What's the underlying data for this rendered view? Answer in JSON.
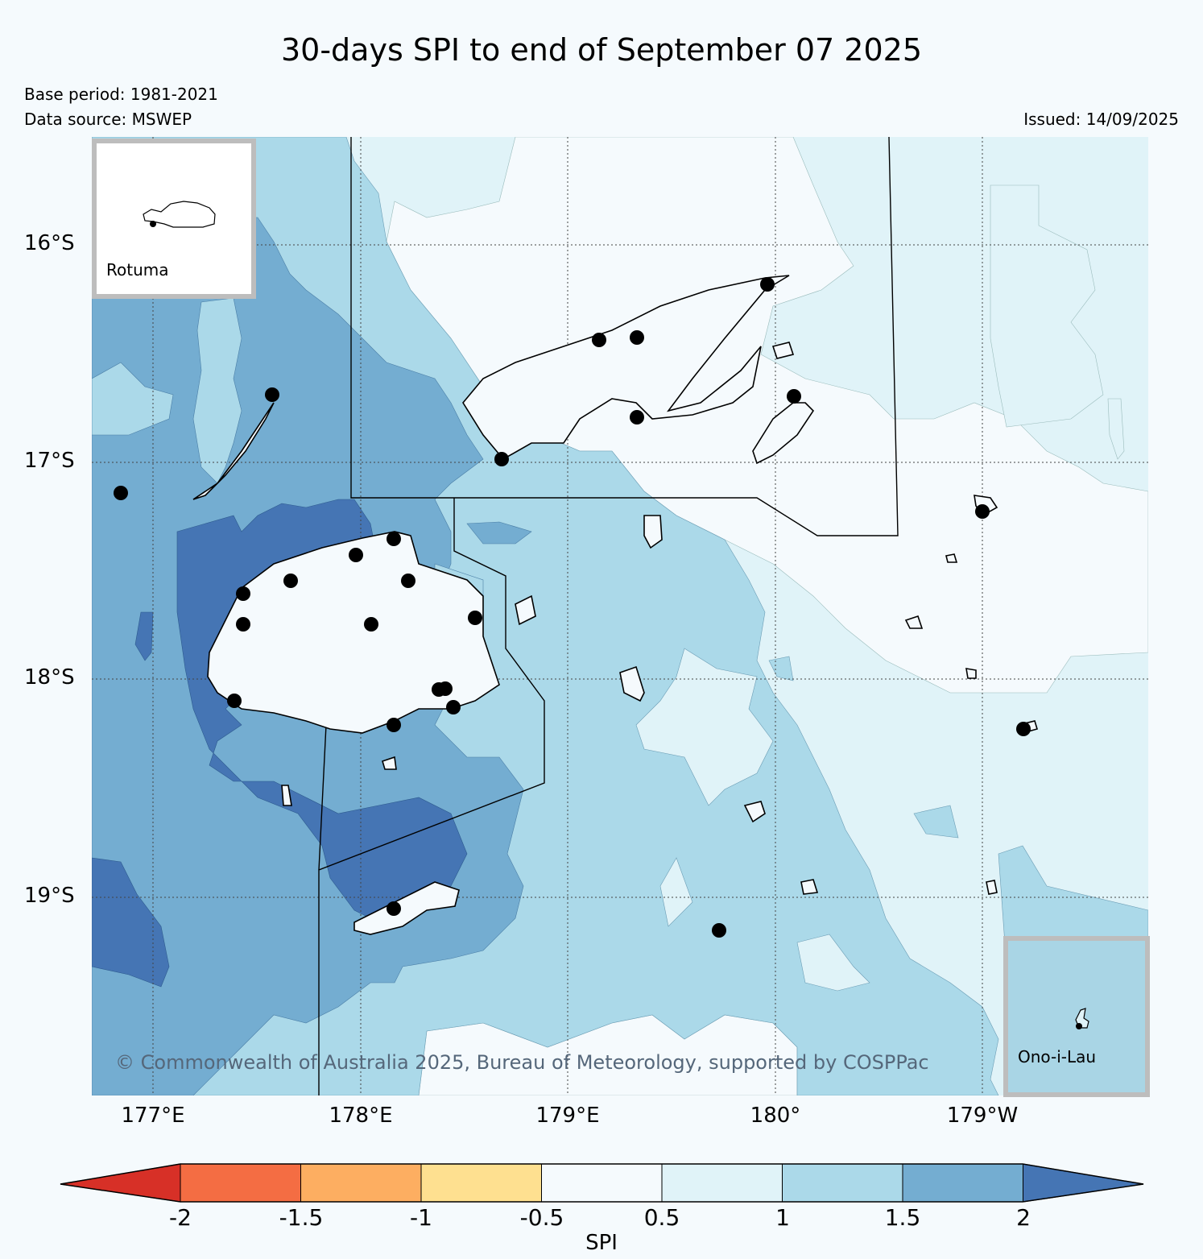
{
  "title": "30-days SPI to end of September 07 2025",
  "base_period": "Base period: 1981-2021",
  "data_source": "Data source: MSWEP",
  "issued": "Issued: 14/09/2025",
  "copyright": "© Commonwealth of Australia 2025, Bureau of Meteorology, supported by COSPPac",
  "map": {
    "lat_labels": [
      "16°S",
      "17°S",
      "18°S",
      "19°S"
    ],
    "lon_labels": [
      "177°E",
      "178°E",
      "179°E",
      "180°",
      "179°W"
    ]
  },
  "insets": {
    "rotuma": "Rotuma",
    "ono_i_lau": "Ono-i-Lau"
  },
  "colorbar": {
    "label": "SPI",
    "ticks": [
      "-2",
      "-1.5",
      "-1",
      "-0.5",
      "0.5",
      "1",
      "1.5",
      "2"
    ],
    "colors": [
      "#d73027",
      "#f46d43",
      "#fdae61",
      "#fee090",
      "#f5fafd",
      "#e0f3f8",
      "#abd9e9",
      "#74add1",
      "#4575b4"
    ]
  }
}
